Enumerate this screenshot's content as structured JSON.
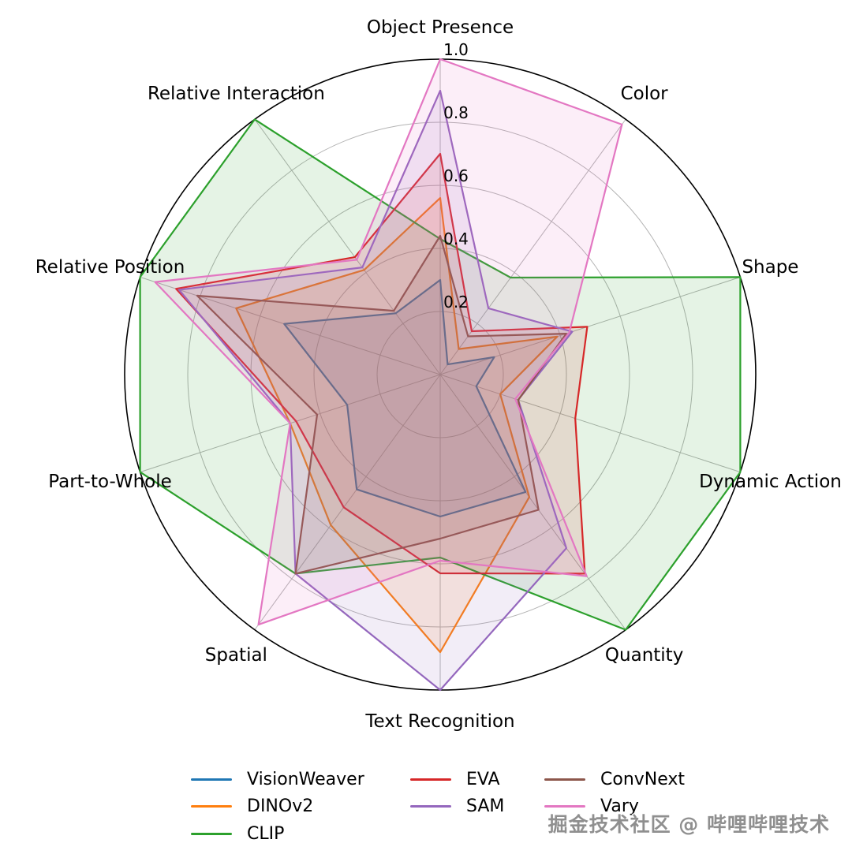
{
  "chart_data": {
    "type": "radar",
    "title": "",
    "categories": [
      "Object Presence",
      "Color",
      "Shape",
      "Dynamic Action",
      "Quantity",
      "Text Recognition",
      "Spatial",
      "Part-to-Whole",
      "Relative Position",
      "Relative Interaction"
    ],
    "series": [
      {
        "name": "VisionWeaver",
        "color": "#1f77b4",
        "values": [
          0.3,
          0.04,
          0.18,
          0.12,
          0.46,
          0.45,
          0.45,
          0.31,
          0.52,
          0.24
        ]
      },
      {
        "name": "DINOv2",
        "color": "#ff7f0e",
        "values": [
          0.56,
          0.1,
          0.39,
          0.2,
          0.48,
          0.88,
          0.59,
          0.5,
          0.68,
          0.41
        ]
      },
      {
        "name": "CLIP",
        "color": "#2ca02c",
        "values": [
          0.43,
          0.38,
          1.0,
          1.0,
          1.0,
          0.58,
          0.78,
          1.0,
          1.0,
          1.0
        ]
      },
      {
        "name": "EVA",
        "color": "#d62728",
        "values": [
          0.7,
          0.17,
          0.49,
          0.45,
          0.78,
          0.63,
          0.52,
          0.48,
          0.88,
          0.46
        ]
      },
      {
        "name": "SAM",
        "color": "#9467bd",
        "values": [
          0.9,
          0.26,
          0.44,
          0.26,
          0.68,
          1.0,
          0.78,
          0.5,
          0.87,
          0.42
        ]
      },
      {
        "name": "ConvNext",
        "color": "#8c564b",
        "values": [
          0.44,
          0.15,
          0.42,
          0.26,
          0.53,
          0.52,
          0.78,
          0.41,
          0.81,
          0.25
        ]
      },
      {
        "name": "Vary",
        "color": "#e377c2",
        "values": [
          1.0,
          0.98,
          0.43,
          0.25,
          0.79,
          0.59,
          0.98,
          0.5,
          0.95,
          0.45
        ]
      }
    ],
    "rlim": [
      0,
      1
    ],
    "radial_ticks": [
      0.2,
      0.4,
      0.6,
      0.8,
      1.0
    ],
    "tick_labels": [
      "0.2",
      "0.4",
      "0.6",
      "0.8",
      "1.0"
    ],
    "grid": true,
    "grid_color": "#b3b3b3",
    "outer_circle_color": "#000000",
    "fill_opacity": 0.12,
    "legend_position": "bottom",
    "legend_columns": [
      [
        "VisionWeaver",
        "DINOv2",
        "CLIP"
      ],
      [
        "EVA",
        "SAM"
      ],
      [
        "ConvNext",
        "Vary"
      ]
    ]
  },
  "watermark": {
    "text": "掘金技术社区 @ 哔哩哔哩技术"
  }
}
